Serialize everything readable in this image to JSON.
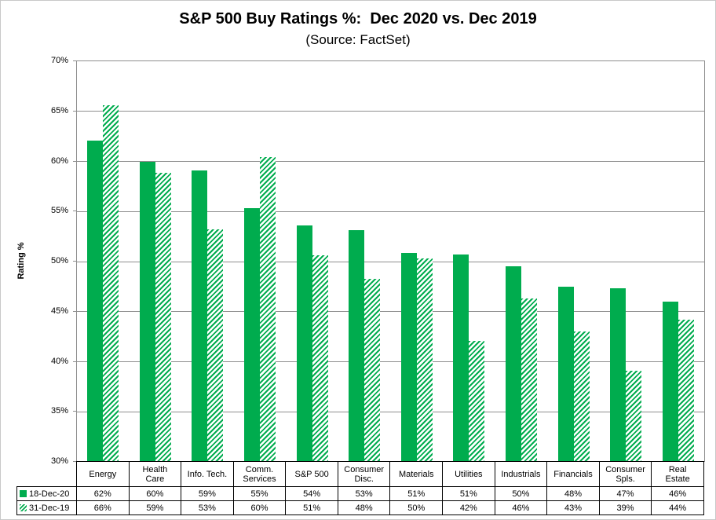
{
  "chart_data": {
    "type": "bar",
    "title": "S&P 500 Buy Ratings %:  Dec 2020 vs. Dec 2019",
    "subtitle": "(Source: FactSet)",
    "ylabel": "Rating %",
    "ylim": [
      30,
      70
    ],
    "ytick_step": 5,
    "ytick_suffix": "%",
    "grid": true,
    "legend_position": "bottom-left-in-data-table",
    "data_table_shown": true,
    "categories": [
      "Energy",
      "Health Care",
      "Info. Tech.",
      "Comm. Services",
      "S&P 500",
      "Consumer Disc.",
      "Materials",
      "Utilities",
      "Industrials",
      "Financials",
      "Consumer Spls.",
      "Real Estate"
    ],
    "categories_display": [
      "Energy",
      "Health\nCare",
      "Info. Tech.",
      "Comm.\nServices",
      "S&P 500",
      "Consumer\nDisc.",
      "Materials",
      "Utilities",
      "Industrials",
      "Financials",
      "Consumer\nSpls.",
      "Real\nEstate"
    ],
    "series": [
      {
        "name": "18-Dec-20",
        "fill": "solid",
        "table_values": [
          "62%",
          "60%",
          "59%",
          "55%",
          "54%",
          "53%",
          "51%",
          "51%",
          "50%",
          "48%",
          "47%",
          "46%"
        ],
        "values": [
          62.1,
          60.0,
          59.1,
          55.3,
          53.6,
          53.1,
          50.9,
          50.7,
          49.5,
          47.5,
          47.3,
          46.0
        ]
      },
      {
        "name": "31-Dec-19",
        "fill": "hatched",
        "table_values": [
          "66%",
          "59%",
          "53%",
          "60%",
          "51%",
          "48%",
          "50%",
          "42%",
          "46%",
          "43%",
          "39%",
          "44%"
        ],
        "values": [
          65.6,
          58.9,
          53.2,
          60.4,
          50.6,
          48.3,
          50.3,
          42.1,
          46.3,
          43.0,
          39.1,
          44.2
        ]
      }
    ]
  },
  "colors": {
    "bar_green": "#00AC4E",
    "gridline": "#8E8E8E",
    "table_border": "#000000",
    "outer_border": "#C8C8C8",
    "text": "#000000",
    "background": "#FFFFFF"
  }
}
